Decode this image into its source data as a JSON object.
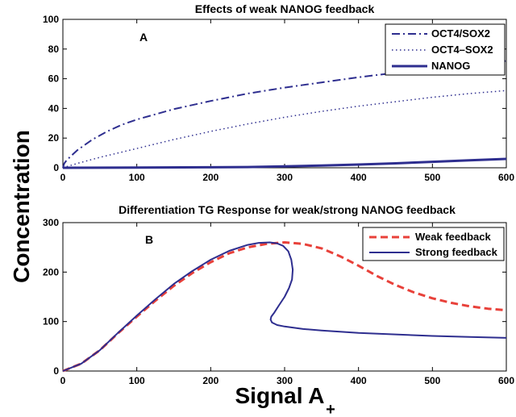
{
  "figure": {
    "ylabel": "Concentration",
    "xlabel_main": "Signal A",
    "xlabel_sub": "+"
  },
  "colors": {
    "blue": "#2e2e8f",
    "red": "#e8413a"
  },
  "chart_data": [
    {
      "type": "line",
      "title": "Effects of weak NANOG feedback",
      "panel_label": "A",
      "xlim": [
        0,
        600
      ],
      "ylim": [
        0,
        100
      ],
      "xticks": [
        0,
        100,
        200,
        300,
        400,
        500,
        600
      ],
      "yticks": [
        0,
        20,
        40,
        60,
        80,
        100
      ],
      "legend_position": "top-right",
      "series": [
        {
          "name": "OCT4/SOX2",
          "style": "dashdot",
          "width": 2,
          "x": [
            0,
            2,
            5,
            10,
            20,
            40,
            60,
            80,
            100,
            150,
            200,
            250,
            300,
            350,
            400,
            450,
            500,
            550,
            600
          ],
          "y": [
            0,
            3,
            5,
            7.5,
            12,
            19,
            24.5,
            29,
            32.5,
            39.5,
            45,
            50,
            54,
            57.5,
            61,
            64,
            67,
            69.5,
            72
          ]
        },
        {
          "name": "OCT4–SOX2",
          "style": "dotted",
          "width": 1.5,
          "x": [
            0,
            10,
            20,
            50,
            100,
            150,
            200,
            250,
            300,
            350,
            400,
            450,
            500,
            550,
            600
          ],
          "y": [
            0,
            1.5,
            3,
            7,
            13,
            19,
            24.5,
            29.5,
            34,
            38,
            41.5,
            44.5,
            47.5,
            50,
            52
          ]
        },
        {
          "name": "NANOG",
          "style": "solid",
          "width": 3,
          "x": [
            0,
            100,
            200,
            250,
            300,
            350,
            400,
            450,
            500,
            550,
            600
          ],
          "y": [
            0,
            0.1,
            0.3,
            0.5,
            0.9,
            1.5,
            2.2,
            3.0,
            4.0,
            5.0,
            6.0
          ]
        }
      ]
    },
    {
      "type": "line",
      "title": "Differentiation TG Response for weak/strong NANOG feedback",
      "panel_label": "B",
      "xlim": [
        0,
        600
      ],
      "ylim": [
        0,
        300
      ],
      "xticks": [
        0,
        100,
        200,
        300,
        400,
        500,
        600
      ],
      "yticks": [
        0,
        100,
        200,
        300
      ],
      "legend_position": "top-right",
      "series": [
        {
          "name": "Weak feedback",
          "style": "dashed",
          "color": "red",
          "width": 3,
          "x": [
            0,
            25,
            50,
            75,
            100,
            125,
            150,
            175,
            200,
            225,
            250,
            275,
            300,
            325,
            350,
            375,
            400,
            425,
            450,
            475,
            500,
            525,
            550,
            575,
            600
          ],
          "y": [
            0,
            15,
            42,
            77,
            110,
            142,
            172,
            198,
            220,
            238,
            250,
            257,
            260,
            257,
            248,
            232,
            213,
            192,
            174,
            159,
            147,
            138,
            131,
            126,
            123
          ]
        },
        {
          "name": "Strong feedback",
          "style": "solid",
          "color": "blue",
          "width": 2,
          "x": [
            0,
            25,
            50,
            75,
            100,
            125,
            150,
            175,
            200,
            225,
            250,
            265,
            280,
            290,
            298,
            305,
            309,
            311,
            310,
            306,
            300,
            292,
            286,
            282,
            281,
            283,
            290,
            300,
            325,
            350,
            400,
            450,
            500,
            550,
            600
          ],
          "y": [
            0,
            15,
            42,
            78,
            112,
            145,
            176,
            202,
            225,
            243,
            255,
            259,
            260,
            258,
            253,
            242,
            225,
            205,
            185,
            168,
            150,
            132,
            118,
            110,
            104,
            98,
            93,
            90,
            85,
            82,
            77,
            74,
            71,
            69,
            67
          ]
        }
      ]
    }
  ]
}
